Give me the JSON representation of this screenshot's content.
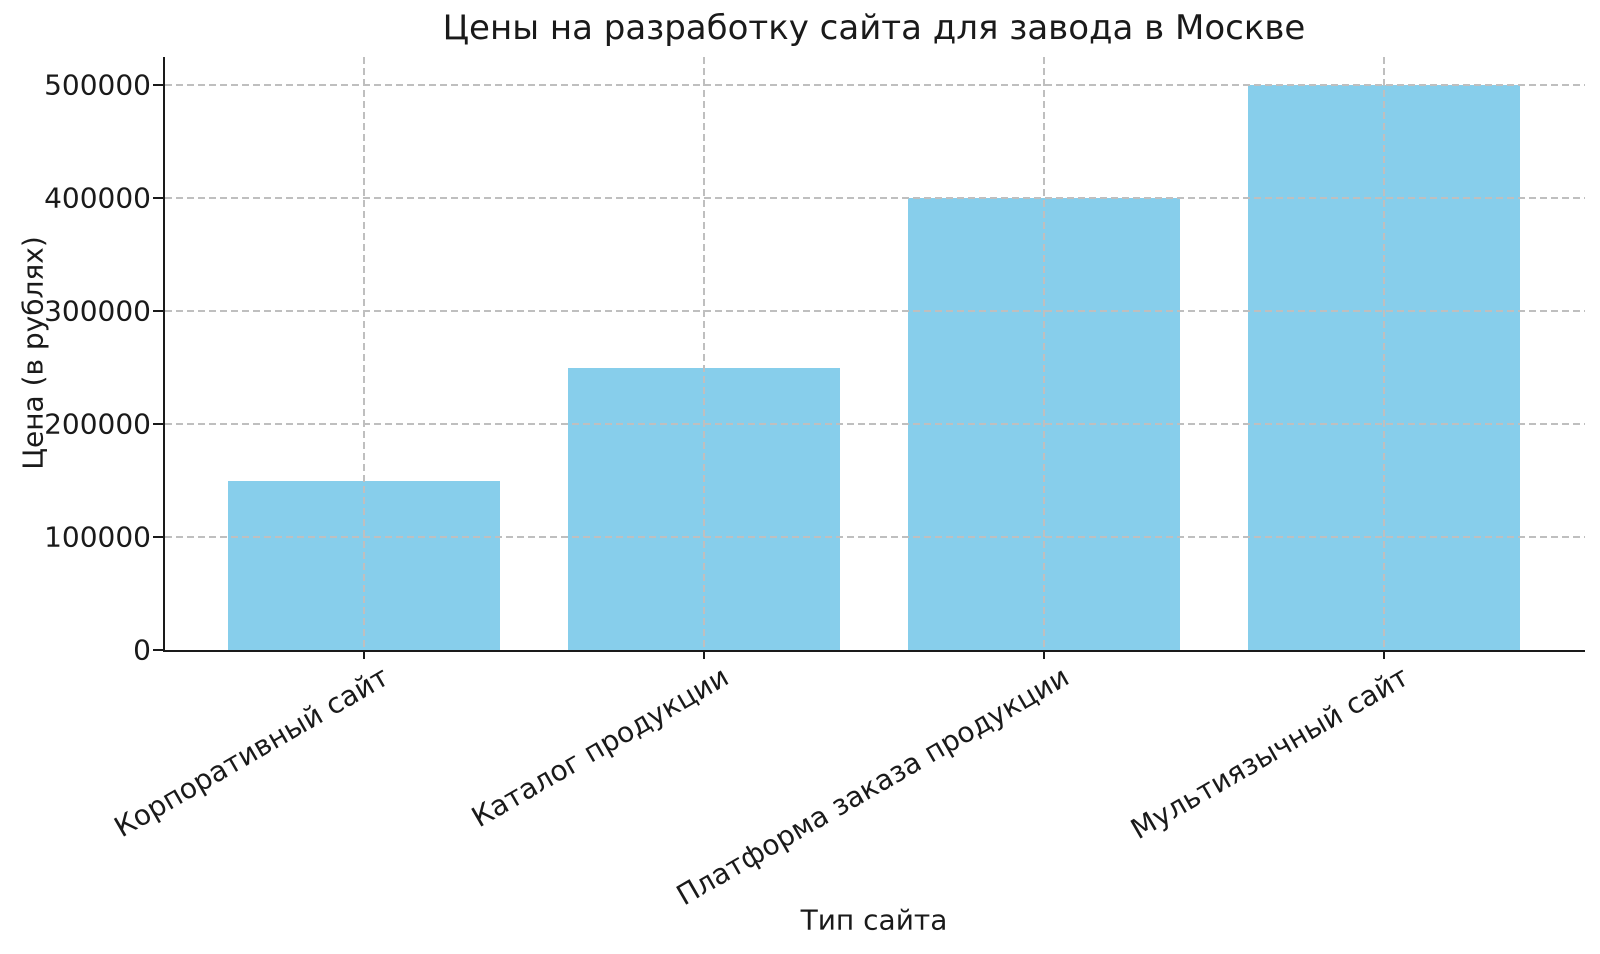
{
  "chart_data": {
    "type": "bar",
    "title": "Цены на разработку сайта для завода в Москве",
    "xlabel": "Тип сайта",
    "ylabel": "Цена (в рублях)",
    "categories": [
      "Корпоративный сайт",
      "Каталог продукции",
      "Платформа заказа продукции",
      "Мультиязычный сайт"
    ],
    "values": [
      150000,
      250000,
      400000,
      500000
    ],
    "ytick_labels": [
      "0",
      "100000",
      "200000",
      "300000",
      "400000",
      "500000"
    ],
    "yticks": [
      0,
      100000,
      200000,
      300000,
      400000,
      500000
    ],
    "ylim": [
      0,
      525000
    ],
    "xtick_rotation_deg": 30,
    "bar_color": "#87CEEB",
    "grid": {
      "visible": true,
      "style": "dashed",
      "color": "#bfbfbf",
      "orientation": "both"
    },
    "background_color": "#ffffff",
    "text_color": "#1a1a1a",
    "legend": "none"
  }
}
